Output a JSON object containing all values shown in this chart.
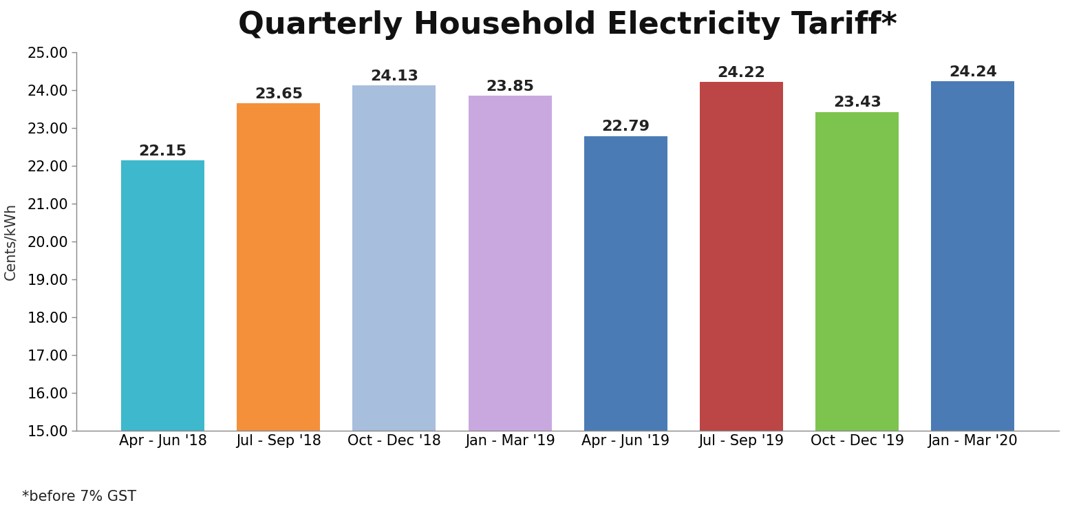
{
  "title": "Quarterly Household Electricity Tariff*",
  "ylabel": "Cents/kWh",
  "footnote": "*before 7% GST",
  "categories": [
    "Apr - Jun '18",
    "Jul - Sep '18",
    "Oct - Dec '18",
    "Jan - Mar '19",
    "Apr - Jun '19",
    "Jul - Sep '19",
    "Oct - Dec '19",
    "Jan - Mar '20"
  ],
  "values": [
    22.15,
    23.65,
    24.13,
    23.85,
    22.79,
    24.22,
    23.43,
    24.24
  ],
  "bar_colors": [
    "#3db8cc",
    "#f5903a",
    "#a8bedd",
    "#c9a8e0",
    "#4b7bb5",
    "#bc4545",
    "#7dc44e",
    "#4b7bb5"
  ],
  "ylim": [
    15.0,
    25.0
  ],
  "yticks": [
    15.0,
    16.0,
    17.0,
    18.0,
    19.0,
    20.0,
    21.0,
    22.0,
    23.0,
    24.0,
    25.0
  ],
  "title_fontsize": 32,
  "label_fontsize": 15,
  "tick_fontsize": 15,
  "value_fontsize": 16,
  "footnote_fontsize": 15,
  "background_color": "#ffffff"
}
